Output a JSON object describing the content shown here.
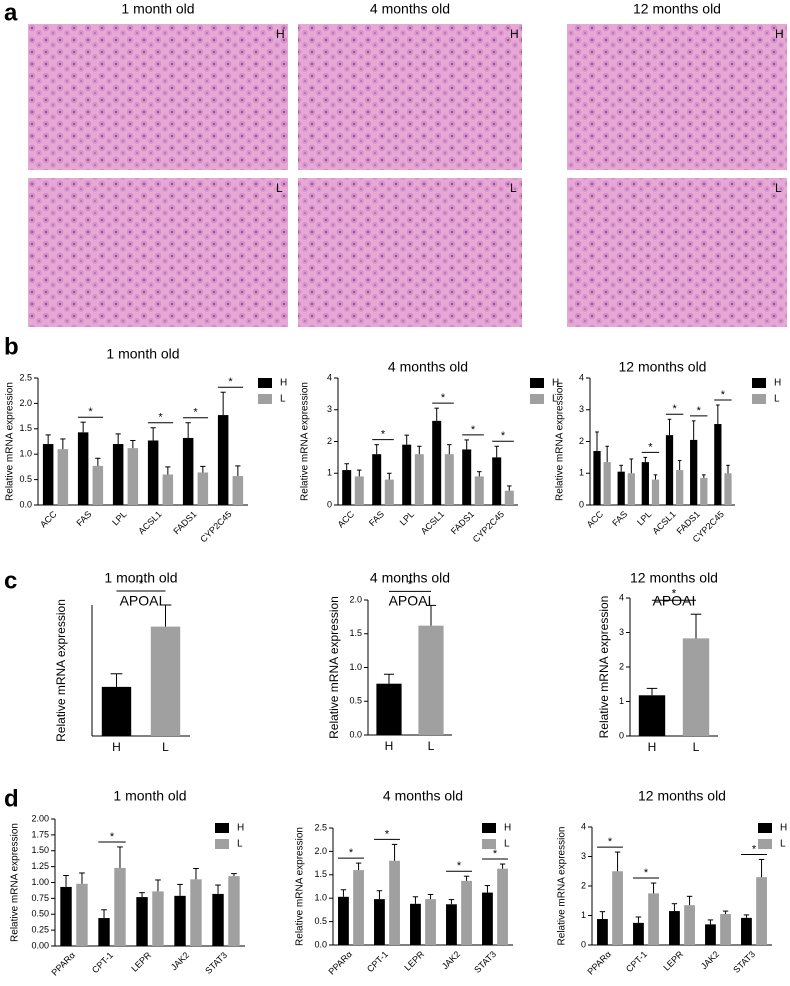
{
  "panel_labels": [
    "a",
    "b",
    "c",
    "d"
  ],
  "histology": {
    "titles": [
      "1 month old",
      "4 months old",
      "12 months old"
    ],
    "row_labels": [
      "H",
      "L"
    ]
  },
  "chart_data": [
    {
      "type": "bar",
      "title": "1 month old",
      "y_label": "Relative mRNA expression",
      "legend": "right",
      "categories": [
        "ACC",
        "FAS",
        "LPL",
        "ACSL1",
        "FADS1",
        "CYP2C45"
      ],
      "series": [
        {
          "name": "H",
          "color": "#000000",
          "values": [
            1.2,
            1.43,
            1.2,
            1.27,
            1.32,
            1.77
          ],
          "errors": [
            0.18,
            0.2,
            0.2,
            0.25,
            0.3,
            0.45
          ]
        },
        {
          "name": "L",
          "color": "#a0a0a0",
          "values": [
            1.1,
            0.77,
            1.12,
            0.6,
            0.64,
            0.57
          ],
          "errors": [
            0.2,
            0.15,
            0.15,
            0.15,
            0.12,
            0.2
          ]
        }
      ],
      "significance_labels": [
        null,
        "*",
        null,
        "*",
        "*",
        "*"
      ],
      "ylim": [
        0,
        2.5
      ],
      "yticks": [
        {
          "value": 0,
          "label": "0.0"
        },
        0.5,
        {
          "value": 1,
          "label": "1.0"
        },
        1.5,
        {
          "value": 2,
          "label": "2.0"
        },
        2.5
      ]
    },
    {
      "type": "bar",
      "title": "4 months old",
      "y_label": "Relative mRNA expression",
      "legend": "right",
      "categories": [
        "ACC",
        "FAS",
        "LPL",
        "ACSL1",
        "FADS1",
        "CYP2C45"
      ],
      "series": [
        {
          "name": "H",
          "color": "#000000",
          "values": [
            1.1,
            1.6,
            1.9,
            2.65,
            1.75,
            1.5
          ],
          "errors": [
            0.2,
            0.3,
            0.3,
            0.4,
            0.3,
            0.35
          ]
        },
        {
          "name": "L",
          "color": "#a0a0a0",
          "values": [
            0.9,
            0.8,
            1.6,
            1.6,
            0.9,
            0.45
          ],
          "errors": [
            0.2,
            0.2,
            0.25,
            0.3,
            0.15,
            0.15
          ]
        }
      ],
      "significance_labels": [
        null,
        "*",
        null,
        "*",
        "*",
        "*"
      ],
      "ylim": [
        0,
        4
      ],
      "yticks": [
        0,
        1,
        2,
        3,
        4
      ]
    },
    {
      "type": "bar",
      "title": "12 months old",
      "y_label": "Relative mRNA expression",
      "legend": "right",
      "categories": [
        "ACC",
        "FAS",
        "LPL",
        "ACSL1",
        "FADS1",
        "CYP2C45"
      ],
      "series": [
        {
          "name": "H",
          "color": "#000000",
          "values": [
            1.7,
            1.05,
            1.35,
            2.2,
            2.05,
            2.55
          ],
          "errors": [
            0.6,
            0.2,
            0.15,
            0.5,
            0.6,
            0.6
          ]
        },
        {
          "name": "L",
          "color": "#a0a0a0",
          "values": [
            1.35,
            1.0,
            0.8,
            1.1,
            0.85,
            1.0
          ],
          "errors": [
            0.5,
            0.45,
            0.15,
            0.3,
            0.1,
            0.25
          ]
        }
      ],
      "significance_labels": [
        null,
        null,
        "*",
        "*",
        "*",
        "*"
      ],
      "ylim": [
        0,
        4
      ],
      "yticks": [
        0,
        1,
        2,
        3,
        4
      ]
    },
    {
      "type": "bar",
      "title": "1 month old",
      "subtitle": "APOAI",
      "y_label": "Relative mRNA expression",
      "categories": [
        "H",
        "L"
      ],
      "values": [
        0.75,
        1.67
      ],
      "errors": [
        0.2,
        0.33
      ],
      "colors": [
        "#000000",
        "#a0a0a0"
      ],
      "significance_label": "*",
      "ylim": [
        0,
        2
      ]
    },
    {
      "type": "bar",
      "title": "4 months old",
      "subtitle": "APOAI",
      "y_label": "Relative mRNA expression",
      "categories": [
        "H",
        "L"
      ],
      "values": [
        0.76,
        1.62
      ],
      "errors": [
        0.14,
        0.3
      ],
      "colors": [
        "#000000",
        "#a0a0a0"
      ],
      "significance_label": "*",
      "ylim": [
        0,
        2
      ],
      "yticks": [
        {
          "value": 0,
          "label": "0.0"
        },
        0.5,
        {
          "value": 1,
          "label": "1.0"
        },
        1.5,
        {
          "value": 2,
          "label": "2.0"
        }
      ]
    },
    {
      "type": "bar",
      "title": "12 months old",
      "subtitle": "APOAI",
      "y_label": "Relative mRNA expression",
      "categories": [
        "H",
        "L"
      ],
      "values": [
        1.18,
        2.83
      ],
      "errors": [
        0.2,
        0.7
      ],
      "colors": [
        "#000000",
        "#a0a0a0"
      ],
      "significance_label": "*",
      "ylim": [
        0,
        4
      ],
      "yticks": [
        0,
        1,
        2,
        3,
        4
      ]
    },
    {
      "type": "bar",
      "title": "1 month old",
      "y_label": "Relative mRNA expression",
      "legend": "upper right",
      "categories": [
        "PPARα",
        "CPT-1",
        "LEPR",
        "JAK2",
        "STAT3"
      ],
      "series": [
        {
          "name": "H",
          "color": "#000000",
          "values": [
            0.93,
            0.44,
            0.77,
            0.79,
            0.82
          ],
          "errors": [
            0.18,
            0.13,
            0.07,
            0.18,
            0.14
          ]
        },
        {
          "name": "L",
          "color": "#a0a0a0",
          "values": [
            0.98,
            1.23,
            0.86,
            1.05,
            1.1
          ],
          "errors": [
            0.17,
            0.33,
            0.18,
            0.17,
            0.04
          ]
        }
      ],
      "significance_labels": [
        null,
        "*",
        null,
        null,
        null
      ],
      "ylim": [
        0,
        2
      ],
      "yticks": [
        {
          "value": 0,
          "label": "0.00"
        },
        0.25,
        {
          "value": 0.5,
          "label": "0.50"
        },
        0.75,
        {
          "value": 1,
          "label": "1.00"
        },
        1.25,
        {
          "value": 1.5,
          "label": "1.50"
        },
        1.75,
        {
          "value": 2,
          "label": "2.00"
        }
      ]
    },
    {
      "type": "bar",
      "title": "4 months old",
      "y_label": "Relative mRNA expression",
      "legend": "upper right",
      "categories": [
        "PPARα",
        "CPT-1",
        "LEPR",
        "JAK2",
        "STAT3"
      ],
      "series": [
        {
          "name": "H",
          "color": "#000000",
          "values": [
            1.03,
            0.98,
            0.88,
            0.87,
            1.12
          ],
          "errors": [
            0.15,
            0.18,
            0.15,
            0.1,
            0.15
          ]
        },
        {
          "name": "L",
          "color": "#a0a0a0",
          "values": [
            1.6,
            1.8,
            0.98,
            1.37,
            1.63
          ],
          "errors": [
            0.15,
            0.35,
            0.1,
            0.1,
            0.1
          ]
        }
      ],
      "significance_labels": [
        "*",
        "*",
        null,
        "*",
        "*"
      ],
      "ylim": [
        0,
        2.5
      ],
      "yticks": [
        {
          "value": 0,
          "label": "0.0"
        },
        0.5,
        {
          "value": 1,
          "label": "1.0"
        },
        1.5,
        {
          "value": 2,
          "label": "2.0"
        },
        2.5
      ]
    },
    {
      "type": "bar",
      "title": "12 months old",
      "y_label": "Relative mRNA expression",
      "legend": "upper right",
      "categories": [
        "PPARα",
        "CPT-1",
        "LEPR",
        "JAK2",
        "STAT3"
      ],
      "series": [
        {
          "name": "H",
          "color": "#000000",
          "values": [
            0.88,
            0.75,
            1.15,
            0.7,
            0.92
          ],
          "errors": [
            0.25,
            0.2,
            0.25,
            0.15,
            0.1
          ]
        },
        {
          "name": "L",
          "color": "#a0a0a0",
          "values": [
            2.5,
            1.75,
            1.35,
            1.05,
            2.3
          ],
          "errors": [
            0.65,
            0.35,
            0.3,
            0.1,
            0.6
          ]
        }
      ],
      "significance_labels": [
        "*",
        "*",
        null,
        null,
        "*"
      ],
      "ylim": [
        0,
        4
      ],
      "yticks": [
        0,
        1,
        2,
        3,
        4
      ]
    }
  ]
}
